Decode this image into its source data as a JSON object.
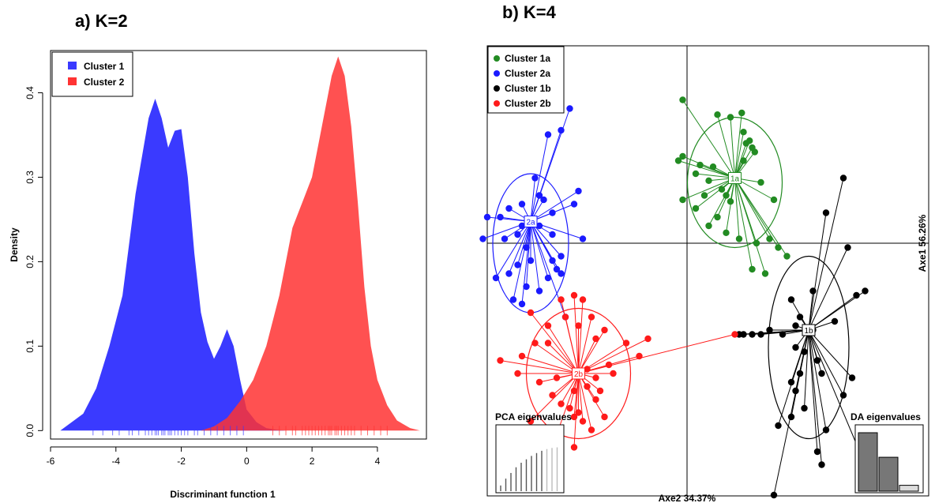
{
  "chart_data": [
    {
      "panel_label": "a) K=2",
      "type": "area",
      "xlabel": "Discriminant function 1",
      "ylabel": "Density",
      "xlim": [
        -6.0,
        5.5
      ],
      "ylim": [
        -0.01,
        0.45
      ],
      "xticks": [
        -6,
        -4,
        -2,
        0,
        2,
        4
      ],
      "yticks": [
        0.0,
        0.1,
        0.2,
        0.3,
        0.4
      ],
      "grid": false,
      "legend_position": "top-left",
      "series": [
        {
          "name": "Cluster 1",
          "color": "#3a3aff",
          "x": [
            -5.7,
            -5.0,
            -4.6,
            -4.2,
            -3.8,
            -3.4,
            -3.0,
            -2.8,
            -2.6,
            -2.4,
            -2.2,
            -2.0,
            -1.8,
            -1.6,
            -1.4,
            -1.2,
            -1.0,
            -0.8,
            -0.6,
            -0.4,
            -0.2,
            0.0,
            0.3,
            0.6,
            0.9,
            1.2
          ],
          "y": [
            0.0,
            0.02,
            0.05,
            0.1,
            0.16,
            0.28,
            0.37,
            0.393,
            0.37,
            0.335,
            0.355,
            0.357,
            0.3,
            0.21,
            0.14,
            0.105,
            0.085,
            0.1,
            0.12,
            0.1,
            0.06,
            0.025,
            0.01,
            0.003,
            0.001,
            0.0
          ],
          "rug": [
            -4.7,
            -4.4,
            -4.1,
            -3.9,
            -3.6,
            -3.5,
            -3.3,
            -3.1,
            -3.0,
            -2.9,
            -2.8,
            -2.75,
            -2.7,
            -2.6,
            -2.55,
            -2.5,
            -2.4,
            -2.35,
            -2.3,
            -2.2,
            -2.1,
            -2.0,
            -1.9,
            -1.8,
            -1.6,
            -1.5,
            -1.3,
            -1.1,
            -0.9,
            -0.7,
            -0.5,
            -0.3,
            -0.1
          ]
        },
        {
          "name": "Cluster 2",
          "color": "#ff3333",
          "x": [
            -1.4,
            -1.0,
            -0.6,
            -0.2,
            0.2,
            0.6,
            1.0,
            1.4,
            1.8,
            2.0,
            2.2,
            2.4,
            2.6,
            2.8,
            3.0,
            3.2,
            3.4,
            3.6,
            3.8,
            4.0,
            4.3,
            4.6,
            5.0,
            5.3
          ],
          "y": [
            0.0,
            0.005,
            0.015,
            0.035,
            0.06,
            0.1,
            0.16,
            0.24,
            0.28,
            0.3,
            0.34,
            0.38,
            0.42,
            0.443,
            0.42,
            0.36,
            0.27,
            0.17,
            0.1,
            0.06,
            0.03,
            0.012,
            0.003,
            0.0
          ],
          "rug": [
            0.8,
            1.0,
            1.2,
            1.4,
            1.5,
            1.7,
            1.8,
            1.9,
            2.0,
            2.1,
            2.2,
            2.3,
            2.4,
            2.5,
            2.55,
            2.6,
            2.7,
            2.75,
            2.8,
            2.9,
            3.0,
            3.1,
            3.2,
            3.3,
            3.5,
            3.7,
            3.9,
            4.1,
            4.3
          ]
        }
      ]
    },
    {
      "panel_label": "b) K=4",
      "type": "scatter",
      "x_axis_label": "Axe2 34.37%",
      "y_axis_label": "Axe1 56.26%",
      "legend_position": "top-left",
      "clusters": [
        {
          "name": "Cluster 1a",
          "label": "1a",
          "color": "#228b22",
          "center": [
            0.55,
            0.75
          ],
          "ellipse": [
            0.55,
            0.7,
            0.2,
            0.3
          ],
          "points": [
            [
              -0.05,
              1.65
            ],
            [
              0.35,
              1.48
            ],
            [
              0.5,
              1.45
            ],
            [
              0.63,
              1.5
            ],
            [
              0.65,
              1.28
            ],
            [
              0.68,
              1.15
            ],
            [
              0.72,
              1.18
            ],
            [
              0.78,
              1.05
            ],
            [
              0.75,
              1.1
            ],
            [
              -0.1,
              0.95
            ],
            [
              -0.05,
              1.0
            ],
            [
              0.1,
              0.8
            ],
            [
              0.15,
              0.9
            ],
            [
              0.25,
              0.72
            ],
            [
              0.3,
              0.88
            ],
            [
              0.4,
              0.62
            ],
            [
              0.45,
              0.55
            ],
            [
              0.5,
              0.48
            ],
            [
              0.35,
              0.3
            ],
            [
              0.45,
              0.12
            ],
            [
              0.25,
              0.2
            ],
            [
              0.1,
              0.4
            ],
            [
              -0.05,
              0.5
            ],
            [
              0.2,
              0.55
            ],
            [
              0.6,
              0.05
            ],
            [
              0.8,
              0.0
            ],
            [
              0.95,
              0.05
            ],
            [
              1.0,
              0.5
            ],
            [
              1.05,
              -0.05
            ],
            [
              1.15,
              -0.15
            ],
            [
              0.9,
              -0.35
            ],
            [
              0.75,
              -0.3
            ],
            [
              0.85,
              0.7
            ],
            [
              0.65,
              0.95
            ]
          ]
        },
        {
          "name": "Cluster 2a",
          "label": "2a",
          "color": "#1a1aff",
          "center": [
            -1.8,
            0.25
          ],
          "ellipse": [
            -1.8,
            0.0,
            0.16,
            0.32
          ],
          "points": [
            [
              -1.35,
              1.55
            ],
            [
              -1.45,
              1.3
            ],
            [
              -1.6,
              1.25
            ],
            [
              -1.7,
              0.55
            ],
            [
              -1.75,
              0.75
            ],
            [
              -1.65,
              0.5
            ],
            [
              -1.9,
              0.45
            ],
            [
              -2.05,
              0.4
            ],
            [
              -2.15,
              0.3
            ],
            [
              -2.3,
              0.3
            ],
            [
              -2.35,
              0.05
            ],
            [
              -2.1,
              0.05
            ],
            [
              -1.95,
              0.1
            ],
            [
              -1.85,
              -0.05
            ],
            [
              -1.95,
              -0.25
            ],
            [
              -2.05,
              -0.35
            ],
            [
              -2.2,
              -0.4
            ],
            [
              -1.85,
              -0.5
            ],
            [
              -1.7,
              -0.55
            ],
            [
              -1.6,
              -0.4
            ],
            [
              -1.55,
              -0.2
            ],
            [
              -1.5,
              -0.3
            ],
            [
              -1.45,
              -0.15
            ],
            [
              -1.7,
              0.2
            ],
            [
              -1.55,
              0.1
            ],
            [
              -1.8,
              -0.2
            ],
            [
              -1.9,
              -0.7
            ],
            [
              -2.0,
              -0.65
            ],
            [
              -1.3,
              0.45
            ],
            [
              -1.25,
              0.6
            ],
            [
              -1.2,
              0.05
            ],
            [
              -1.45,
              -0.35
            ],
            [
              -1.9,
              0.2
            ],
            [
              -1.55,
              0.35
            ],
            [
              -1.4,
              -0.85
            ]
          ]
        },
        {
          "name": "Cluster 1b",
          "label": "1b",
          "color": "#000000",
          "center": [
            1.4,
            -1.0
          ],
          "ellipse": [
            1.4,
            -1.2,
            0.17,
            0.42
          ],
          "points": [
            [
              1.8,
              0.75
            ],
            [
              1.6,
              0.35
            ],
            [
              1.85,
              -0.05
            ],
            [
              2.05,
              -0.55
            ],
            [
              1.95,
              -0.6
            ],
            [
              1.45,
              -0.55
            ],
            [
              1.2,
              -0.65
            ],
            [
              1.3,
              -0.85
            ],
            [
              1.25,
              -0.95
            ],
            [
              1.1,
              -1.05
            ],
            [
              0.95,
              -1.0
            ],
            [
              0.85,
              -1.05
            ],
            [
              0.75,
              -1.05
            ],
            [
              0.65,
              -1.05
            ],
            [
              0.6,
              -1.05
            ],
            [
              1.25,
              -1.2
            ],
            [
              1.35,
              -1.25
            ],
            [
              1.5,
              -1.35
            ],
            [
              1.55,
              -1.5
            ],
            [
              1.3,
              -1.5
            ],
            [
              1.2,
              -1.6
            ],
            [
              1.25,
              -1.7
            ],
            [
              1.35,
              -1.9
            ],
            [
              1.6,
              -2.15
            ],
            [
              2.05,
              -2.55
            ],
            [
              1.55,
              -2.55
            ],
            [
              1.2,
              -2.0
            ],
            [
              1.05,
              -2.1
            ],
            [
              1.0,
              -2.9
            ],
            [
              1.5,
              -2.4
            ],
            [
              1.8,
              -1.75
            ],
            [
              1.9,
              -1.55
            ],
            [
              1.7,
              -0.9
            ],
            [
              1.45,
              -1.0
            ]
          ]
        },
        {
          "name": "Cluster 2b",
          "label": "2b",
          "color": "#ff1a1a",
          "center": [
            -1.25,
            -1.5
          ],
          "ellipse": [
            -1.25,
            -1.5,
            0.22,
            0.3
          ],
          "points": [
            [
              -1.8,
              -0.8
            ],
            [
              -1.6,
              -0.95
            ],
            [
              -1.45,
              -0.65
            ],
            [
              -1.3,
              -0.6
            ],
            [
              -1.2,
              -0.65
            ],
            [
              -1.4,
              -0.85
            ],
            [
              -1.25,
              -0.95
            ],
            [
              -1.1,
              -0.85
            ],
            [
              -1.05,
              -1.1
            ],
            [
              -0.95,
              -1.0
            ],
            [
              -1.6,
              -1.15
            ],
            [
              -1.75,
              -1.15
            ],
            [
              -1.9,
              -1.3
            ],
            [
              -2.15,
              -1.35
            ],
            [
              -1.95,
              -1.5
            ],
            [
              -1.7,
              -1.6
            ],
            [
              -1.5,
              -1.55
            ],
            [
              -1.55,
              -1.75
            ],
            [
              -1.45,
              -1.85
            ],
            [
              -1.35,
              -1.9
            ],
            [
              -1.3,
              -2.0
            ],
            [
              -1.25,
              -1.95
            ],
            [
              -1.2,
              -2.05
            ],
            [
              -1.1,
              -2.15
            ],
            [
              -0.95,
              -2.0
            ],
            [
              -1.05,
              -1.8
            ],
            [
              -1.0,
              -1.7
            ],
            [
              -0.85,
              -1.5
            ],
            [
              -0.9,
              -1.4
            ],
            [
              -1.15,
              -1.65
            ],
            [
              -1.3,
              -1.7
            ],
            [
              -1.5,
              -2.2
            ],
            [
              -1.8,
              -2.05
            ],
            [
              -1.3,
              -2.35
            ],
            [
              -0.7,
              -1.15
            ],
            [
              -0.55,
              -1.3
            ],
            [
              -0.45,
              -1.1
            ],
            [
              0.55,
              -1.05
            ],
            [
              -1.05,
              -1.55
            ],
            [
              -1.15,
              -1.45
            ]
          ]
        }
      ],
      "insets": [
        {
          "title": "PCA eigenvalues",
          "position": "bottom-left",
          "values": [
            0.1,
            0.22,
            0.32,
            0.42,
            0.5,
            0.56,
            0.62,
            0.67,
            0.71,
            0.74,
            0.76,
            0.77
          ]
        },
        {
          "title": "DA eigenvalues",
          "position": "bottom-right",
          "values": [
            1.0,
            0.58,
            0.1
          ]
        }
      ]
    }
  ]
}
